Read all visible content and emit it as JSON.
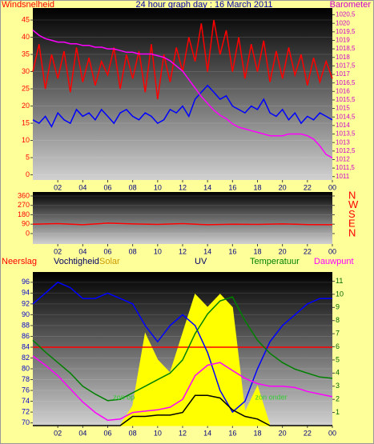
{
  "chart_data": [
    {
      "type": "line",
      "title": "24 hour graph day : 16 March 2011",
      "ylabel": "Windsnelheid",
      "y2label": "Barometer",
      "x": [
        0,
        0.5,
        1,
        1.5,
        2,
        2.5,
        3,
        3.5,
        4,
        4.5,
        5,
        5.5,
        6,
        6.5,
        7,
        7.5,
        8,
        8.5,
        9,
        9.5,
        10,
        10.5,
        11,
        11.5,
        12,
        12.5,
        13,
        13.5,
        14,
        14.5,
        15,
        15.5,
        16,
        16.5,
        17,
        17.5,
        18,
        18.5,
        19,
        19.5,
        20,
        20.5,
        21,
        21.5,
        22,
        22.5,
        23,
        23.5,
        24
      ],
      "series": [
        {
          "color": "#ff0000",
          "values": [
            30,
            38,
            25,
            35,
            28,
            36,
            24,
            37,
            27,
            34,
            26,
            33,
            29,
            37,
            25,
            35,
            28,
            36,
            24,
            38,
            22,
            35,
            27,
            37,
            30,
            40,
            33,
            44,
            30,
            45,
            35,
            42,
            30,
            40,
            28,
            38,
            30,
            39,
            27,
            36,
            28,
            37,
            29,
            35,
            26,
            34,
            27,
            33,
            28
          ]
        },
        {
          "color": "#0000ff",
          "values": [
            16,
            15,
            17,
            14,
            18,
            16,
            15,
            19,
            17,
            18,
            16,
            19,
            17,
            15,
            18,
            19,
            17,
            16,
            18,
            17,
            15,
            16,
            19,
            18,
            20,
            17,
            22,
            24,
            26,
            24,
            22,
            23,
            20,
            19,
            18,
            20,
            19,
            22,
            18,
            17,
            19,
            16,
            18,
            15,
            17,
            16,
            18,
            17,
            16
          ]
        },
        {
          "color": "#ff00ff",
          "axis": "y2",
          "values": [
            1019.6,
            1019.3,
            1019.1,
            1019.0,
            1018.9,
            1018.9,
            1018.8,
            1018.8,
            1018.7,
            1018.7,
            1018.6,
            1018.6,
            1018.5,
            1018.5,
            1018.4,
            1018.3,
            1018.3,
            1018.2,
            1018.2,
            1018.2,
            1018.1,
            1018.0,
            1017.8,
            1017.5,
            1017.2,
            1016.7,
            1016.2,
            1015.7,
            1015.3,
            1014.9,
            1014.6,
            1014.4,
            1014.1,
            1013.9,
            1013.8,
            1013.7,
            1013.6,
            1013.5,
            1013.4,
            1013.4,
            1013.4,
            1013.5,
            1013.5,
            1013.5,
            1013.4,
            1013.2,
            1012.8,
            1012.3,
            1012.1
          ]
        }
      ],
      "xlim": [
        0,
        24
      ],
      "xticks": [
        {
          "value": 2,
          "label": "02"
        },
        {
          "value": 4,
          "label": "04"
        },
        {
          "value": 6,
          "label": "06"
        },
        {
          "value": 8,
          "label": "08"
        },
        10,
        12,
        14,
        16,
        18,
        20,
        22,
        {
          "value": 24,
          "label": "00"
        }
      ],
      "ylim": [
        -1.5,
        48.5
      ],
      "yticks": [
        0,
        5,
        10,
        15,
        20,
        25,
        30,
        35,
        40,
        45
      ],
      "y2lim": [
        1010.8,
        1020.9
      ],
      "y2ticks": [
        1011,
        {
          "value": 1011.5,
          "label": "1011,5"
        },
        1012,
        {
          "value": 1012.5,
          "label": "1012,5"
        },
        1013,
        {
          "value": 1013.5,
          "label": "1013,5"
        },
        1014,
        {
          "value": 1014.5,
          "label": "1014,5"
        },
        1015,
        {
          "value": 1015.5,
          "label": "1015,5"
        },
        1016,
        {
          "value": 1016.5,
          "label": "1016,5"
        },
        1017,
        {
          "value": 1017.5,
          "label": "1017,5"
        },
        1018,
        {
          "value": 1018.5,
          "label": "1018,5"
        },
        1019,
        {
          "value": 1019.5,
          "label": "1019,5"
        },
        1020,
        {
          "value": 1020.5,
          "label": "1020,5"
        }
      ],
      "grid": true
    },
    {
      "type": "line",
      "x": [
        0,
        2,
        4,
        6,
        8,
        10,
        12,
        14,
        16,
        18,
        20,
        22,
        24
      ],
      "series": [
        {
          "color": "#ff0000",
          "values": [
            90,
            95,
            85,
            100,
            92,
            88,
            95,
            85,
            90,
            88,
            92,
            86,
            85
          ]
        }
      ],
      "xlim": [
        0,
        24
      ],
      "xticks": [
        {
          "value": 2,
          "label": "02"
        },
        {
          "value": 4,
          "label": "04"
        },
        {
          "value": 6,
          "label": "06"
        },
        {
          "value": 8,
          "label": "08"
        },
        10,
        12,
        14,
        16,
        18,
        20,
        22,
        {
          "value": 24,
          "label": "00"
        }
      ],
      "ylim": [
        -100,
        398
      ],
      "yticks": [
        0,
        90,
        180,
        270,
        360
      ],
      "y2lim": [
        -100,
        398
      ],
      "y2ticks": [
        {
          "value": 360,
          "label": "N"
        },
        {
          "value": 270,
          "label": "W"
        },
        {
          "value": 180,
          "label": "S"
        },
        {
          "value": 90,
          "label": "E"
        },
        {
          "value": 0,
          "label": "N"
        }
      ],
      "grid": true
    },
    {
      "type": "line",
      "legend": "top",
      "x": [
        0,
        1,
        2,
        3,
        4,
        5,
        6,
        7,
        8,
        9,
        10,
        11,
        12,
        13,
        14,
        15,
        16,
        17,
        18,
        19,
        20,
        21,
        22,
        23,
        24
      ],
      "series": [
        {
          "name": "Neerslag",
          "color": "#ff0000",
          "values": [
            84,
            84,
            84,
            84,
            84,
            84,
            84,
            84,
            84,
            84,
            84,
            84,
            84,
            84,
            84,
            84,
            84,
            84,
            84,
            84,
            84,
            84,
            84,
            84,
            84
          ]
        },
        {
          "name": "Vochtigheid",
          "color": "#0000ff",
          "values": [
            92,
            94,
            96,
            95,
            93,
            93,
            94,
            93,
            92,
            88,
            85,
            88,
            90,
            88,
            83,
            76,
            72,
            74,
            80,
            85,
            88,
            90,
            92,
            93,
            93
          ]
        },
        {
          "name": "Solar",
          "color": "#ffff00",
          "axis": "y2",
          "fill": true,
          "values": [
            0,
            0,
            0,
            0,
            0,
            0,
            0,
            0,
            1.5,
            7,
            5,
            4,
            7,
            10,
            9,
            10,
            9,
            1,
            3,
            0,
            0,
            0,
            0,
            0,
            0
          ]
        },
        {
          "name": "UV",
          "color": "#000000",
          "axis": "y2",
          "values": [
            0,
            0,
            0,
            0,
            0,
            0,
            0,
            0,
            0.7,
            0.7,
            0.8,
            0.8,
            1,
            2.3,
            2.3,
            2.1,
            1.2,
            0.7,
            0.5,
            0,
            0,
            0,
            0,
            0,
            0
          ]
        },
        {
          "name": "Temperatuur",
          "color": "#008000",
          "axis": "y2",
          "values": [
            6.5,
            5.6,
            4.8,
            4.0,
            3.0,
            2.4,
            1.9,
            2.0,
            2.5,
            3.0,
            3.5,
            4.0,
            5.0,
            7.0,
            8.5,
            9.5,
            9.8,
            8.0,
            6.5,
            5.5,
            4.8,
            4.3,
            4.0,
            3.7,
            3.6
          ]
        },
        {
          "name": "Dauwpunt",
          "color": "#ff00ff",
          "axis": "y2",
          "values": [
            5.3,
            4.6,
            3.8,
            2.8,
            1.8,
            1.0,
            0.4,
            0.5,
            1.0,
            1.1,
            1.2,
            1.4,
            2.0,
            3.8,
            4.6,
            4.8,
            4.2,
            3.6,
            3.2,
            3.0,
            3.0,
            2.9,
            2.6,
            2.4,
            2.2
          ]
        }
      ],
      "annotations": [
        {
          "text": "zon op",
          "x": 7.3
        },
        {
          "text": "zon onder",
          "x": 19.1
        }
      ],
      "xlim": [
        0,
        24
      ],
      "xticks": [
        {
          "value": 2,
          "label": "02"
        },
        {
          "value": 4,
          "label": "04"
        },
        {
          "value": 6,
          "label": "06"
        },
        {
          "value": 8,
          "label": "08"
        },
        10,
        12,
        14,
        16,
        18,
        20,
        22,
        {
          "value": 24,
          "label": "00"
        }
      ],
      "ylim": [
        69.5,
        97.9
      ],
      "yticks": [
        70,
        72,
        74,
        76,
        78,
        80,
        82,
        84,
        86,
        88,
        90,
        92,
        94,
        96
      ],
      "y2lim": [
        0,
        11.7
      ],
      "y2ticks": [
        1,
        2,
        3,
        4,
        5,
        6,
        7,
        8,
        9,
        10,
        11
      ],
      "grid": true
    }
  ]
}
